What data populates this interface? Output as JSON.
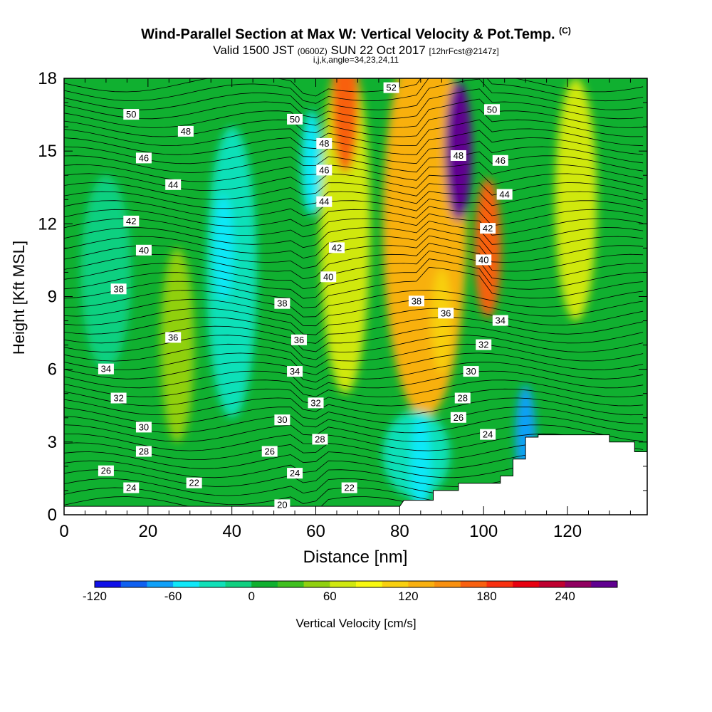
{
  "header": {
    "title": "Wind-Parallel Section at Max W: Vertical Velocity & Pot.Temp.",
    "title_suffix": "(C)",
    "subtitle_a": "Valid 1500 JST",
    "subtitle_b": "(0600Z)",
    "subtitle_c": "SUN 22 Oct 2017",
    "subtitle_d": "[12hrFcst@2147z]",
    "subtitle2": "i,j,k,angle=34,23,24,11"
  },
  "chart_data": {
    "type": "heatmap",
    "xlabel": "Distance [nm]",
    "ylabel": "Height [Kft MSL]",
    "xlim": [
      0,
      139
    ],
    "ylim": [
      0,
      18
    ],
    "xticks": [
      0,
      20,
      40,
      60,
      80,
      100,
      120
    ],
    "yticks": [
      0,
      3,
      6,
      9,
      12,
      15,
      18
    ],
    "colorbar": {
      "label": "Vertical Velocity [cm/s]",
      "ticks": [
        -120,
        -60,
        0,
        60,
        120,
        180,
        240
      ],
      "levels": [
        -120,
        -100,
        -80,
        -60,
        -40,
        -20,
        0,
        20,
        40,
        60,
        80,
        100,
        120,
        140,
        160,
        180,
        200,
        220,
        240,
        260,
        280
      ],
      "colors": [
        "#1010e8",
        "#1060f0",
        "#10a0f8",
        "#10e8f8",
        "#10e0b8",
        "#10d080",
        "#10b030",
        "#40c020",
        "#90d010",
        "#d0e810",
        "#f8f810",
        "#f8d010",
        "#f8b010",
        "#f89010",
        "#f86010",
        "#f83010",
        "#e80010",
        "#c00030",
        "#900060",
        "#600090"
      ]
    },
    "velocity_features": [
      {
        "label": "updraft core",
        "x": 94,
        "y": 15,
        "w": 260
      },
      {
        "label": "updraft upper",
        "x": 67,
        "y": 17,
        "w": 170
      },
      {
        "label": "updraft upper-right",
        "x": 101,
        "y": 11,
        "w": 160
      },
      {
        "label": "updraft mid",
        "x": 90,
        "y": 8,
        "w": 110
      },
      {
        "label": "downdraft",
        "x": 38,
        "y": 11,
        "w": -50
      },
      {
        "label": "downdraft",
        "x": 59,
        "y": 14.5,
        "w": -50
      },
      {
        "label": "downdraft low",
        "x": 85,
        "y": 2,
        "w": -45
      },
      {
        "label": "downdraft terrain",
        "x": 110,
        "y": 3.2,
        "w": -70
      }
    ],
    "theta_labels": [
      {
        "x": 16,
        "y": 16.5,
        "t": "50"
      },
      {
        "x": 29,
        "y": 15.8,
        "t": "48"
      },
      {
        "x": 19,
        "y": 14.7,
        "t": "46"
      },
      {
        "x": 26,
        "y": 13.6,
        "t": "44"
      },
      {
        "x": 16,
        "y": 12.1,
        "t": "42"
      },
      {
        "x": 19,
        "y": 10.9,
        "t": "40"
      },
      {
        "x": 13,
        "y": 9.3,
        "t": "38"
      },
      {
        "x": 26,
        "y": 7.3,
        "t": "36"
      },
      {
        "x": 10,
        "y": 6.0,
        "t": "34"
      },
      {
        "x": 13,
        "y": 4.8,
        "t": "32"
      },
      {
        "x": 19,
        "y": 3.6,
        "t": "30"
      },
      {
        "x": 19,
        "y": 2.6,
        "t": "28"
      },
      {
        "x": 10,
        "y": 1.8,
        "t": "26"
      },
      {
        "x": 16,
        "y": 1.1,
        "t": "24"
      },
      {
        "x": 31,
        "y": 1.3,
        "t": "22"
      },
      {
        "x": 55,
        "y": 16.3,
        "t": "50"
      },
      {
        "x": 62,
        "y": 15.3,
        "t": "48"
      },
      {
        "x": 62,
        "y": 14.2,
        "t": "46"
      },
      {
        "x": 62,
        "y": 12.9,
        "t": "44"
      },
      {
        "x": 65,
        "y": 11.0,
        "t": "42"
      },
      {
        "x": 63,
        "y": 9.8,
        "t": "40"
      },
      {
        "x": 52,
        "y": 8.7,
        "t": "38"
      },
      {
        "x": 56,
        "y": 7.2,
        "t": "36"
      },
      {
        "x": 55,
        "y": 5.9,
        "t": "34"
      },
      {
        "x": 60,
        "y": 4.6,
        "t": "32"
      },
      {
        "x": 52,
        "y": 3.9,
        "t": "30"
      },
      {
        "x": 61,
        "y": 3.1,
        "t": "28"
      },
      {
        "x": 49,
        "y": 2.6,
        "t": "26"
      },
      {
        "x": 55,
        "y": 1.7,
        "t": "24"
      },
      {
        "x": 68,
        "y": 1.1,
        "t": "22"
      },
      {
        "x": 52,
        "y": 0.4,
        "t": "20"
      },
      {
        "x": 78,
        "y": 17.6,
        "t": "52"
      },
      {
        "x": 94,
        "y": 14.8,
        "t": "48"
      },
      {
        "x": 102,
        "y": 16.7,
        "t": "50"
      },
      {
        "x": 104,
        "y": 14.6,
        "t": "46"
      },
      {
        "x": 105,
        "y": 13.2,
        "t": "44"
      },
      {
        "x": 101,
        "y": 11.8,
        "t": "42"
      },
      {
        "x": 100,
        "y": 10.5,
        "t": "40"
      },
      {
        "x": 84,
        "y": 8.8,
        "t": "38"
      },
      {
        "x": 91,
        "y": 8.3,
        "t": "36"
      },
      {
        "x": 104,
        "y": 8.0,
        "t": "34"
      },
      {
        "x": 100,
        "y": 7.0,
        "t": "32"
      },
      {
        "x": 97,
        "y": 5.9,
        "t": "30"
      },
      {
        "x": 95,
        "y": 4.8,
        "t": "28"
      },
      {
        "x": 94,
        "y": 4.0,
        "t": "26"
      },
      {
        "x": 101,
        "y": 3.3,
        "t": "24"
      }
    ],
    "terrain": [
      [
        0,
        0.35
      ],
      [
        80,
        0.35
      ],
      [
        81,
        0.6
      ],
      [
        88,
        0.6
      ],
      [
        88,
        1.0
      ],
      [
        94,
        1.0
      ],
      [
        94,
        1.3
      ],
      [
        104,
        1.3
      ],
      [
        104,
        1.6
      ],
      [
        107,
        1.6
      ],
      [
        107,
        2.3
      ],
      [
        110,
        2.3
      ],
      [
        110,
        3.2
      ],
      [
        113,
        3.2
      ],
      [
        113,
        3.3
      ],
      [
        130,
        3.3
      ],
      [
        130,
        3.0
      ],
      [
        136,
        3.0
      ],
      [
        136,
        2.6
      ],
      [
        139,
        2.6
      ]
    ]
  }
}
